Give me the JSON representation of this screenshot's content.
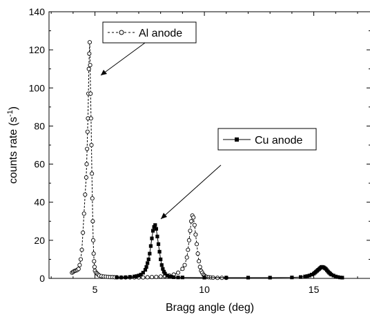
{
  "chart_data": {
    "type": "scatter",
    "title": "",
    "xlabel": "Bragg angle (deg)",
    "ylabel_main": "counts rate (s",
    "ylabel_sup": "-1",
    "ylabel_tail": ")",
    "xlim": [
      2.9,
      17.6
    ],
    "ylim": [
      0,
      140
    ],
    "xticks": [
      5,
      10,
      15
    ],
    "yticks": [
      0,
      20,
      40,
      60,
      80,
      100,
      120,
      140
    ],
    "series": [
      {
        "name": "Al anode",
        "marker": "open-circle",
        "line": "dashed",
        "x": [
          3.95,
          4.0,
          4.05,
          4.1,
          4.15,
          4.2,
          4.25,
          4.3,
          4.35,
          4.4,
          4.45,
          4.5,
          4.55,
          4.6,
          4.62,
          4.64,
          4.66,
          4.68,
          4.7,
          4.72,
          4.74,
          4.76,
          4.78,
          4.8,
          4.82,
          4.84,
          4.86,
          4.88,
          4.9,
          4.92,
          4.94,
          4.96,
          4.98,
          5.0,
          5.05,
          5.1,
          5.15,
          5.2,
          5.3,
          5.4,
          5.5,
          5.6,
          5.7,
          5.8,
          5.9,
          6.0,
          6.2,
          6.4,
          6.6,
          6.8,
          7.0,
          7.2,
          7.4,
          7.6,
          7.8,
          8.0,
          8.2,
          8.4,
          8.6,
          8.8,
          9.0,
          9.1,
          9.2,
          9.25,
          9.3,
          9.35,
          9.4,
          9.45,
          9.5,
          9.55,
          9.6,
          9.65,
          9.7,
          9.75,
          9.8,
          9.85,
          9.9,
          9.95,
          10.0,
          10.05,
          10.1,
          10.2,
          10.3,
          10.4,
          10.6,
          10.8,
          11.0
        ],
        "y": [
          3,
          3.4,
          3.8,
          4,
          4.2,
          4.5,
          5,
          7,
          10,
          15,
          24,
          34,
          44,
          53,
          60,
          68,
          77,
          84,
          97,
          110,
          118,
          124,
          112,
          97,
          84,
          70,
          55,
          42,
          30,
          20,
          13,
          9,
          6,
          4,
          3,
          2.5,
          2,
          1.5,
          1.2,
          1,
          0.9,
          0.8,
          0.7,
          0.7,
          0.6,
          0.6,
          0.5,
          0.5,
          0.5,
          0.5,
          0.5,
          0.5,
          0.6,
          0.7,
          0.8,
          1,
          1.2,
          1.5,
          2,
          3,
          5,
          7,
          11,
          15,
          20,
          25,
          30,
          33,
          32,
          28,
          23,
          18,
          13,
          9,
          6,
          4,
          3,
          2,
          1.5,
          1,
          0.8,
          0.6,
          0.5,
          0.4,
          0.3,
          0.3,
          0.3
        ]
      },
      {
        "name": "Cu anode",
        "marker": "filled-square",
        "line": "solid",
        "x": [
          6.0,
          6.2,
          6.4,
          6.6,
          6.8,
          6.9,
          7.0,
          7.1,
          7.2,
          7.3,
          7.35,
          7.4,
          7.45,
          7.5,
          7.55,
          7.6,
          7.65,
          7.7,
          7.75,
          7.8,
          7.85,
          7.9,
          7.95,
          8.0,
          8.05,
          8.1,
          8.15,
          8.2,
          8.3,
          8.4,
          8.5,
          8.6,
          8.8,
          9.0,
          10.0,
          11.0,
          12.0,
          13.0,
          14.0,
          14.4,
          14.6,
          14.7,
          14.8,
          14.9,
          15.0,
          15.05,
          15.1,
          15.15,
          15.2,
          15.25,
          15.3,
          15.35,
          15.4,
          15.45,
          15.5,
          15.55,
          15.6,
          15.65,
          15.7,
          15.75,
          15.8,
          15.9,
          16.0,
          16.1,
          16.2,
          16.3
        ],
        "y": [
          0.5,
          0.5,
          0.6,
          0.8,
          1,
          1.2,
          1.5,
          2,
          3,
          4.5,
          6,
          8,
          10,
          13,
          17,
          21,
          25,
          27,
          28,
          26,
          22,
          18,
          14,
          10,
          7,
          5,
          3.5,
          2.5,
          1.5,
          1,
          0.8,
          0.6,
          0.5,
          0.5,
          0.4,
          0.4,
          0.4,
          0.4,
          0.5,
          0.7,
          1,
          1.2,
          1.5,
          2,
          2.5,
          3,
          3.5,
          4,
          4.5,
          5,
          5.5,
          6,
          6,
          5.8,
          5.4,
          5,
          4.3,
          3.6,
          3,
          2.5,
          2,
          1.5,
          1,
          0.7,
          0.5,
          0.4
        ]
      }
    ],
    "annotations": [
      {
        "text": "Al anode",
        "series": 0,
        "arrow_to": [
          4.95,
          96
        ]
      },
      {
        "text": "Cu anode",
        "series": 1,
        "arrow_to": [
          7.75,
          29
        ]
      }
    ]
  }
}
